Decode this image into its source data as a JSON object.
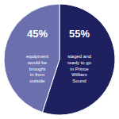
{
  "chart_data": {
    "type": "pie",
    "values": [
      55,
      45
    ],
    "value_labels": [
      "55%",
      "45%"
    ],
    "colors": [
      "#1e2060",
      "#6b6fae"
    ],
    "data_labels": true,
    "annotations": [
      "staged and\nready to go\nin Prince\nWilliam\nSound",
      "equipment\nwould be\nbrought\nin from\noutside"
    ]
  }
}
